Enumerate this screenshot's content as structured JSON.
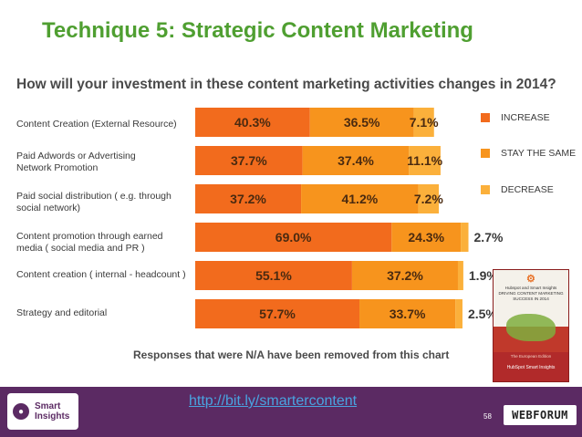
{
  "slide": {
    "title": "Technique 5: Strategic Content Marketing",
    "note": "Responses that were N/A have been removed from this chart",
    "link": "http://bit.ly/smartercontent",
    "page_number": "58"
  },
  "chart_data": {
    "type": "bar",
    "orientation": "horizontal",
    "stacked": true,
    "title": "How will your investment in these content marketing activities changes in 2014?",
    "categories": [
      "Content Creation (External Resource)",
      "Paid Adwords or Advertising Network Promotion",
      "Paid social distribution ( e.g. through social network)",
      "Content promotion through earned media ( social media and PR )",
      "Content creation ( internal - headcount )",
      "Strategy and editorial"
    ],
    "value_labels": [
      [
        "40.3%",
        "36.5%",
        "7.1%"
      ],
      [
        "37.7%",
        "37.4%",
        "11.1%"
      ],
      [
        "37.2%",
        "41.2%",
        "7.2%"
      ],
      [
        "69.0%",
        "24.3%",
        "2.7%"
      ],
      [
        "55.1%",
        "37.2%",
        "1.9%"
      ],
      [
        "57.7%",
        "33.7%",
        "2.5%"
      ]
    ],
    "series": [
      {
        "name": "INCREASE",
        "color": "#f26b1d",
        "values": [
          40.3,
          37.7,
          37.2,
          69.0,
          55.1,
          57.7
        ]
      },
      {
        "name": "STAY THE SAME",
        "color": "#f7941d",
        "values": [
          36.5,
          37.4,
          41.2,
          24.3,
          37.2,
          33.7
        ]
      },
      {
        "name": "DECREASE",
        "color": "#fbb03b",
        "values": [
          7.1,
          11.1,
          7.2,
          2.7,
          1.9,
          2.5
        ]
      }
    ],
    "legend_position": "right",
    "xlim": [
      0,
      100
    ],
    "grid": false
  },
  "report_cover": {
    "text_lines": [
      "Hubspot and Smart Insights",
      "DRIVING CONTENT MARKETING",
      "SUCCESS IN 2014"
    ],
    "edition": "The European Edition",
    "publishers": "HubSpot  Smart Insights"
  },
  "logos": {
    "smart_insights": [
      "Smart",
      "Insights"
    ],
    "webforum": "WEBFORUM"
  },
  "colors": {
    "title_green": "#4f9f31",
    "footer_purple": "#5b2a63",
    "link_blue": "#49a3e0"
  }
}
